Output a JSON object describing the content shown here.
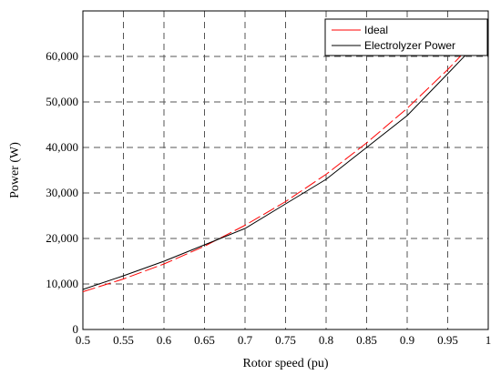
{
  "chart_data": {
    "type": "line",
    "xlabel": "Rotor speed (pu)",
    "ylabel": "Power (W)",
    "xlim": [
      0.5,
      1.0
    ],
    "ylim": [
      0,
      70000
    ],
    "x_ticks": [
      0.5,
      0.55,
      0.6,
      0.65,
      0.7,
      0.75,
      0.8,
      0.85,
      0.9,
      0.95,
      1.0
    ],
    "x_tick_labels": [
      "0.5",
      "0.55",
      "0.6",
      "0.65",
      "0.7",
      "0.75",
      "0.8",
      "0.85",
      "0.9",
      "0.95",
      "1"
    ],
    "y_ticks": [
      0,
      10000,
      20000,
      30000,
      40000,
      50000,
      60000
    ],
    "y_tick_labels": [
      "0",
      "10,000",
      "20,000",
      "30,000",
      "40,000",
      "50,000",
      "60,000"
    ],
    "grid": true,
    "legend_position": "top-right",
    "series": [
      {
        "name": "Ideal",
        "color": "#ff0000",
        "style": "dashed",
        "x": [
          0.5,
          0.55,
          0.6,
          0.65,
          0.7,
          0.75,
          0.8,
          0.85,
          0.9,
          0.95,
          1.0
        ],
        "y": [
          8300,
          11100,
          14400,
          18300,
          22900,
          28100,
          34100,
          41000,
          48600,
          57100,
          66500
        ]
      },
      {
        "name": "Electrolyzer Power",
        "color": "#000000",
        "style": "solid",
        "x": [
          0.5,
          0.55,
          0.6,
          0.65,
          0.7,
          0.75,
          0.8,
          0.85,
          0.9,
          0.95,
          1.0
        ],
        "y": [
          8800,
          11800,
          15000,
          18600,
          22200,
          27600,
          33000,
          40000,
          47000,
          56200,
          65500
        ]
      }
    ]
  }
}
